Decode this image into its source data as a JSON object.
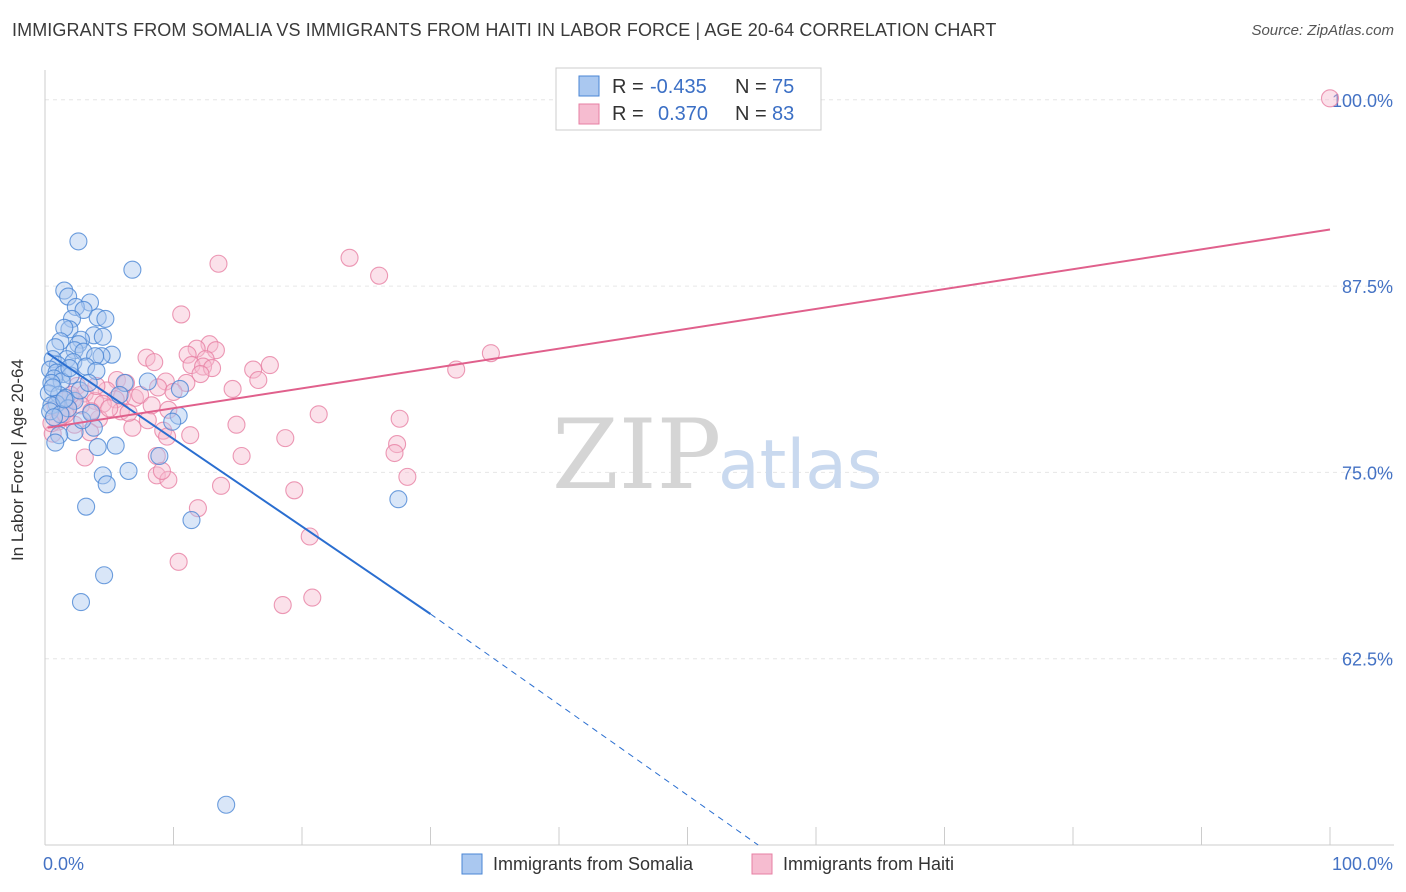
{
  "title": "IMMIGRANTS FROM SOMALIA VS IMMIGRANTS FROM HAITI IN LABOR FORCE | AGE 20-64 CORRELATION CHART",
  "source": "Source: ZipAtlas.com",
  "watermark": {
    "zip": "ZIP",
    "atlas": "atlas"
  },
  "colors": {
    "somalia_fill": "#aac8f0",
    "somalia_stroke": "#4a86d4",
    "somalia_line": "#2a6ed0",
    "haiti_fill": "#f6bcd0",
    "haiti_stroke": "#e77fa3",
    "haiti_line": "#e0608c",
    "grid": "#e6e6e6",
    "tick_label": "#4472c4"
  },
  "legend": {
    "rows": [
      {
        "r_label": "R =",
        "r_value": "-0.435",
        "n_label": "N =",
        "n_value": "75"
      },
      {
        "r_label": "R =",
        "r_value": "0.370",
        "n_label": "N =",
        "n_value": "83"
      }
    ]
  },
  "chart_data": {
    "type": "scatter",
    "title": "IMMIGRANTS FROM SOMALIA VS IMMIGRANTS FROM HAITI IN LABOR FORCE | AGE 20-64 CORRELATION CHART",
    "xlabel": "",
    "ylabel": "In Labor Force | Age 20-64",
    "xlim": [
      0,
      100
    ],
    "ylim": [
      50,
      102
    ],
    "x_tick_labels": [
      "0.0%",
      "100.0%"
    ],
    "y_ticks": [
      62.5,
      75.0,
      87.5,
      100.0
    ],
    "y_tick_labels": [
      "62.5%",
      "75.0%",
      "87.5%",
      "100.0%"
    ],
    "series": [
      {
        "name": "Immigrants from Somalia",
        "r": -0.435,
        "n": 75,
        "trend": {
          "x0": 0.2,
          "y0": 83.0,
          "x1": 30.0,
          "y1": 65.5,
          "dash_x1": 55.5,
          "dash_y1": 50.0
        },
        "points": [
          [
            2.6,
            90.5
          ],
          [
            6.8,
            88.6
          ],
          [
            1.5,
            87.2
          ],
          [
            3.5,
            86.4
          ],
          [
            1.8,
            86.8
          ],
          [
            2.4,
            86.1
          ],
          [
            3.0,
            85.9
          ],
          [
            4.1,
            85.4
          ],
          [
            4.7,
            85.3
          ],
          [
            2.1,
            85.3
          ],
          [
            1.9,
            84.6
          ],
          [
            1.5,
            84.7
          ],
          [
            3.8,
            84.2
          ],
          [
            4.5,
            84.1
          ],
          [
            2.8,
            83.9
          ],
          [
            2.6,
            83.6
          ],
          [
            1.2,
            83.8
          ],
          [
            0.8,
            83.4
          ],
          [
            2.3,
            83.2
          ],
          [
            3.0,
            83.1
          ],
          [
            5.2,
            82.9
          ],
          [
            4.4,
            82.8
          ],
          [
            3.9,
            82.8
          ],
          [
            1.7,
            82.6
          ],
          [
            2.2,
            82.4
          ],
          [
            0.6,
            82.6
          ],
          [
            1.0,
            82.2
          ],
          [
            3.2,
            82.1
          ],
          [
            0.4,
            81.9
          ],
          [
            0.9,
            81.7
          ],
          [
            4.0,
            81.8
          ],
          [
            1.4,
            81.6
          ],
          [
            2.0,
            81.5
          ],
          [
            0.7,
            81.3
          ],
          [
            1.3,
            81.1
          ],
          [
            0.5,
            81.0
          ],
          [
            8.0,
            81.1
          ],
          [
            6.2,
            81.0
          ],
          [
            10.5,
            80.6
          ],
          [
            0.3,
            80.3
          ],
          [
            1.1,
            80.2
          ],
          [
            1.6,
            80.0
          ],
          [
            2.3,
            79.8
          ],
          [
            0.9,
            79.6
          ],
          [
            0.5,
            79.5
          ],
          [
            1.8,
            79.3
          ],
          [
            0.4,
            79.1
          ],
          [
            1.2,
            78.9
          ],
          [
            0.7,
            78.7
          ],
          [
            10.4,
            78.8
          ],
          [
            9.9,
            78.4
          ],
          [
            3.8,
            78.0
          ],
          [
            2.3,
            77.7
          ],
          [
            1.1,
            77.5
          ],
          [
            0.8,
            77.0
          ],
          [
            5.5,
            76.8
          ],
          [
            4.1,
            76.7
          ],
          [
            8.9,
            76.1
          ],
          [
            6.5,
            75.1
          ],
          [
            4.5,
            74.8
          ],
          [
            4.8,
            74.2
          ],
          [
            27.5,
            73.2
          ],
          [
            3.2,
            72.7
          ],
          [
            11.4,
            71.8
          ],
          [
            4.6,
            68.1
          ],
          [
            2.8,
            66.3
          ],
          [
            14.1,
            52.7
          ],
          [
            1.9,
            82.0
          ],
          [
            2.7,
            80.5
          ],
          [
            3.4,
            81.0
          ],
          [
            0.6,
            80.7
          ],
          [
            1.5,
            79.9
          ],
          [
            2.9,
            78.5
          ],
          [
            5.8,
            80.2
          ],
          [
            3.6,
            79.0
          ]
        ]
      },
      {
        "name": "Immigrants from Haiti",
        "r": 0.37,
        "n": 83,
        "trend": {
          "x0": 0.2,
          "y0": 78.0,
          "x1": 100.0,
          "y1": 91.3
        },
        "points": [
          [
            100.0,
            100.1
          ],
          [
            23.7,
            89.4
          ],
          [
            13.5,
            89.0
          ],
          [
            26.0,
            88.2
          ],
          [
            10.6,
            85.6
          ],
          [
            34.7,
            83.0
          ],
          [
            12.8,
            83.6
          ],
          [
            11.8,
            83.3
          ],
          [
            13.3,
            83.2
          ],
          [
            11.1,
            82.9
          ],
          [
            12.5,
            82.6
          ],
          [
            7.9,
            82.7
          ],
          [
            8.5,
            82.4
          ],
          [
            17.5,
            82.2
          ],
          [
            11.4,
            82.2
          ],
          [
            12.3,
            82.1
          ],
          [
            13.0,
            82.0
          ],
          [
            16.2,
            81.9
          ],
          [
            32.0,
            81.9
          ],
          [
            12.1,
            81.6
          ],
          [
            16.6,
            81.2
          ],
          [
            9.4,
            81.1
          ],
          [
            11.0,
            81.0
          ],
          [
            5.6,
            81.2
          ],
          [
            6.3,
            81.0
          ],
          [
            2.5,
            80.8
          ],
          [
            8.8,
            80.7
          ],
          [
            14.6,
            80.6
          ],
          [
            10.0,
            80.4
          ],
          [
            4.8,
            80.5
          ],
          [
            3.1,
            80.3
          ],
          [
            6.0,
            80.1
          ],
          [
            7.0,
            80.0
          ],
          [
            5.5,
            79.9
          ],
          [
            2.2,
            79.9
          ],
          [
            3.9,
            79.8
          ],
          [
            1.5,
            79.8
          ],
          [
            4.5,
            79.6
          ],
          [
            2.8,
            79.5
          ],
          [
            0.8,
            79.5
          ],
          [
            1.8,
            79.3
          ],
          [
            5.9,
            79.1
          ],
          [
            9.6,
            79.2
          ],
          [
            21.3,
            78.9
          ],
          [
            27.6,
            78.6
          ],
          [
            4.2,
            78.6
          ],
          [
            8.0,
            78.5
          ],
          [
            1.0,
            78.4
          ],
          [
            2.3,
            78.2
          ],
          [
            14.9,
            78.2
          ],
          [
            6.8,
            78.0
          ],
          [
            9.2,
            77.8
          ],
          [
            3.5,
            77.7
          ],
          [
            0.6,
            77.6
          ],
          [
            11.3,
            77.5
          ],
          [
            9.5,
            77.4
          ],
          [
            18.7,
            77.3
          ],
          [
            27.4,
            76.9
          ],
          [
            27.2,
            76.3
          ],
          [
            15.3,
            76.1
          ],
          [
            8.7,
            76.1
          ],
          [
            3.1,
            76.0
          ],
          [
            28.2,
            74.7
          ],
          [
            8.7,
            74.8
          ],
          [
            9.6,
            74.5
          ],
          [
            9.1,
            75.1
          ],
          [
            13.7,
            74.1
          ],
          [
            19.4,
            73.8
          ],
          [
            11.9,
            72.6
          ],
          [
            20.6,
            70.7
          ],
          [
            10.4,
            69.0
          ],
          [
            20.8,
            66.6
          ],
          [
            18.5,
            66.1
          ],
          [
            1.3,
            78.8
          ],
          [
            3.6,
            79.1
          ],
          [
            0.5,
            78.3
          ],
          [
            5.0,
            79.3
          ],
          [
            7.4,
            80.2
          ],
          [
            2.0,
            80.2
          ],
          [
            6.5,
            79.0
          ],
          [
            4.0,
            80.8
          ],
          [
            1.6,
            78.9
          ],
          [
            8.3,
            79.5
          ]
        ]
      }
    ]
  }
}
